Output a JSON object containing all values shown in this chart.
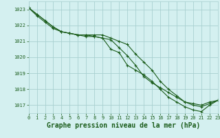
{
  "background_color": "#d4f0f0",
  "grid_color": "#a8d0d0",
  "line_color": "#1a5c1a",
  "title": "Graphe pression niveau de la mer (hPa)",
  "title_fontsize": 7,
  "xlim": [
    0,
    23
  ],
  "ylim": [
    1016.5,
    1023.5
  ],
  "yticks": [
    1017,
    1018,
    1019,
    1020,
    1021,
    1022,
    1023
  ],
  "xticks": [
    0,
    1,
    2,
    3,
    4,
    5,
    6,
    7,
    8,
    9,
    10,
    11,
    12,
    13,
    14,
    15,
    16,
    17,
    18,
    19,
    20,
    21,
    22,
    23
  ],
  "series1_x": [
    0,
    1,
    2,
    3,
    4,
    5,
    6,
    7,
    8,
    9,
    10,
    11,
    12,
    13,
    14,
    15,
    16,
    17,
    18,
    19,
    20,
    21,
    22,
    23
  ],
  "series1_y": [
    1023.1,
    1022.7,
    1022.3,
    1021.9,
    1021.6,
    1021.5,
    1021.4,
    1021.4,
    1021.4,
    1021.4,
    1021.2,
    1021.0,
    1020.8,
    1020.2,
    1019.7,
    1019.2,
    1018.5,
    1018.0,
    1017.6,
    1017.2,
    1017.1,
    1017.0,
    1017.2,
    1017.3
  ],
  "series2_x": [
    0,
    1,
    2,
    3,
    4,
    5,
    6,
    7,
    8,
    9,
    10,
    11,
    12,
    13,
    14,
    15,
    16,
    17,
    18,
    19,
    20,
    21,
    22,
    23
  ],
  "series2_y": [
    1023.1,
    1022.6,
    1022.2,
    1021.8,
    1021.6,
    1021.5,
    1021.4,
    1021.3,
    1021.3,
    1021.2,
    1020.5,
    1020.3,
    1019.5,
    1019.2,
    1018.9,
    1018.5,
    1018.0,
    1017.5,
    1017.2,
    1016.9,
    1016.7,
    1016.6,
    1017.0,
    1017.3
  ],
  "series3_x": [
    0,
    3,
    4,
    5,
    6,
    7,
    8,
    9,
    10,
    11,
    12,
    13,
    14,
    15,
    16,
    17,
    18,
    19,
    20,
    21,
    22,
    23
  ],
  "series3_y": [
    1023.1,
    1021.9,
    1021.6,
    1021.5,
    1021.4,
    1021.4,
    1021.3,
    1021.2,
    1021.1,
    1020.6,
    1020.1,
    1019.5,
    1018.8,
    1018.4,
    1018.1,
    1017.8,
    1017.5,
    1017.2,
    1017.0,
    1016.9,
    1017.1,
    1017.3
  ]
}
